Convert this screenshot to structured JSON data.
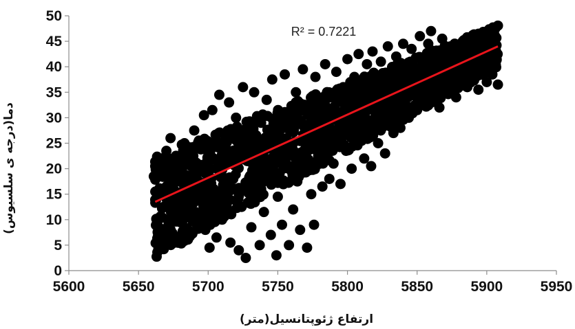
{
  "chart_data": {
    "type": "scatter",
    "title": "",
    "xlabel": "ارتفاع ژئوپتانسیل(متر)",
    "ylabel": "دما(درجه ی سلسیوس)",
    "xlim": [
      5600,
      5950
    ],
    "ylim": [
      0,
      50
    ],
    "x_ticks": [
      "5600",
      "5650",
      "5700",
      "5750",
      "5800",
      "5850",
      "5900",
      "5950"
    ],
    "y_ticks": [
      "0",
      "5",
      "10",
      "15",
      "20",
      "25",
      "30",
      "35",
      "40",
      "45",
      "50"
    ],
    "grid": false,
    "marker_color": "#000000",
    "trendline": {
      "type": "linear",
      "color": "#e8141b",
      "x": [
        5662,
        5908
      ],
      "y": [
        13.5,
        44.0
      ],
      "annotation": "R² = 0.7221"
    },
    "points": [
      [
        5661,
        18.5
      ],
      [
        5662,
        20.5
      ],
      [
        5665,
        15.5
      ],
      [
        5668,
        12.5
      ],
      [
        5670,
        23.5
      ],
      [
        5673,
        26.0
      ],
      [
        5676,
        21.0
      ],
      [
        5678,
        17.5
      ],
      [
        5680,
        9.5
      ],
      [
        5683,
        25.0
      ],
      [
        5685,
        14.0
      ],
      [
        5688,
        7.5
      ],
      [
        5690,
        27.5
      ],
      [
        5692,
        19.0
      ],
      [
        5695,
        11.0
      ],
      [
        5697,
        30.5
      ],
      [
        5698,
        8.0
      ],
      [
        5700,
        22.0
      ],
      [
        5701,
        4.5
      ],
      [
        5703,
        31.5
      ],
      [
        5704,
        16.0
      ],
      [
        5706,
        6.5
      ],
      [
        5708,
        34.5
      ],
      [
        5710,
        10.0
      ],
      [
        5712,
        25.5
      ],
      [
        5715,
        33.0
      ],
      [
        5716,
        5.5
      ],
      [
        5718,
        18.0
      ],
      [
        5720,
        30.0
      ],
      [
        5722,
        4.0
      ],
      [
        5724,
        12.5
      ],
      [
        5725,
        36.0
      ],
      [
        5727,
        2.5
      ],
      [
        5728,
        21.5
      ],
      [
        5730,
        27.0
      ],
      [
        5731,
        8.5
      ],
      [
        5733,
        35.0
      ],
      [
        5735,
        15.0
      ],
      [
        5737,
        5.0
      ],
      [
        5738,
        29.0
      ],
      [
        5740,
        11.5
      ],
      [
        5742,
        33.5
      ],
      [
        5743,
        19.5
      ],
      [
        5745,
        7.0
      ],
      [
        5746,
        37.5
      ],
      [
        5748,
        24.0
      ],
      [
        5749,
        3.0
      ],
      [
        5750,
        14.5
      ],
      [
        5752,
        31.0
      ],
      [
        5753,
        9.0
      ],
      [
        5755,
        38.5
      ],
      [
        5756,
        21.0
      ],
      [
        5758,
        5.0
      ],
      [
        5760,
        28.0
      ],
      [
        5761,
        12.0
      ],
      [
        5763,
        35.0
      ],
      [
        5764,
        17.5
      ],
      [
        5766,
        8.0
      ],
      [
        5768,
        39.5
      ],
      [
        5770,
        25.5
      ],
      [
        5771,
        4.5
      ],
      [
        5773,
        32.5
      ],
      [
        5774,
        15.0
      ],
      [
        5776,
        9.0
      ],
      [
        5777,
        38.0
      ],
      [
        5779,
        22.5
      ],
      [
        5781,
        30.0
      ],
      [
        5782,
        16.5
      ],
      [
        5784,
        40.5
      ],
      [
        5786,
        26.0
      ],
      [
        5787,
        18.0
      ],
      [
        5789,
        34.5
      ],
      [
        5790,
        21.0
      ],
      [
        5792,
        39.0
      ],
      [
        5794,
        28.0
      ],
      [
        5795,
        17.0
      ],
      [
        5797,
        36.0
      ],
      [
        5799,
        23.5
      ],
      [
        5800,
        41.5
      ],
      [
        5802,
        30.5
      ],
      [
        5803,
        20.0
      ],
      [
        5805,
        38.0
      ],
      [
        5807,
        26.5
      ],
      [
        5808,
        42.5
      ],
      [
        5810,
        33.0
      ],
      [
        5812,
        22.0
      ],
      [
        5814,
        40.5
      ],
      [
        5815,
        29.5
      ],
      [
        5817,
        20.5
      ],
      [
        5818,
        43.0
      ],
      [
        5820,
        35.0
      ],
      [
        5822,
        25.0
      ],
      [
        5824,
        41.0
      ],
      [
        5826,
        31.0
      ],
      [
        5827,
        23.0
      ],
      [
        5829,
        44.0
      ],
      [
        5831,
        37.5
      ],
      [
        5833,
        27.0
      ],
      [
        5835,
        42.0
      ],
      [
        5836,
        33.5
      ],
      [
        5838,
        28.0
      ],
      [
        5840,
        44.5
      ],
      [
        5842,
        38.5
      ],
      [
        5844,
        30.0
      ],
      [
        5846,
        43.5
      ],
      [
        5848,
        35.0
      ],
      [
        5850,
        31.5
      ],
      [
        5852,
        46.0
      ],
      [
        5854,
        40.0
      ],
      [
        5856,
        33.0
      ],
      [
        5858,
        44.5
      ],
      [
        5860,
        47.0
      ],
      [
        5862,
        37.5
      ],
      [
        5864,
        42.0
      ],
      [
        5866,
        32.0
      ],
      [
        5868,
        45.5
      ],
      [
        5870,
        39.0
      ],
      [
        5872,
        35.0
      ],
      [
        5874,
        44.0
      ],
      [
        5876,
        41.0
      ],
      [
        5878,
        34.0
      ],
      [
        5880,
        43.5
      ],
      [
        5882,
        38.5
      ],
      [
        5884,
        45.0
      ],
      [
        5886,
        36.0
      ],
      [
        5888,
        42.5
      ],
      [
        5890,
        46.0
      ],
      [
        5892,
        39.0
      ],
      [
        5894,
        35.5
      ],
      [
        5896,
        43.0
      ],
      [
        5898,
        40.5
      ],
      [
        5900,
        37.0
      ],
      [
        5902,
        44.0
      ],
      [
        5904,
        38.5
      ],
      [
        5906,
        41.5
      ],
      [
        5908,
        36.5
      ]
    ]
  }
}
